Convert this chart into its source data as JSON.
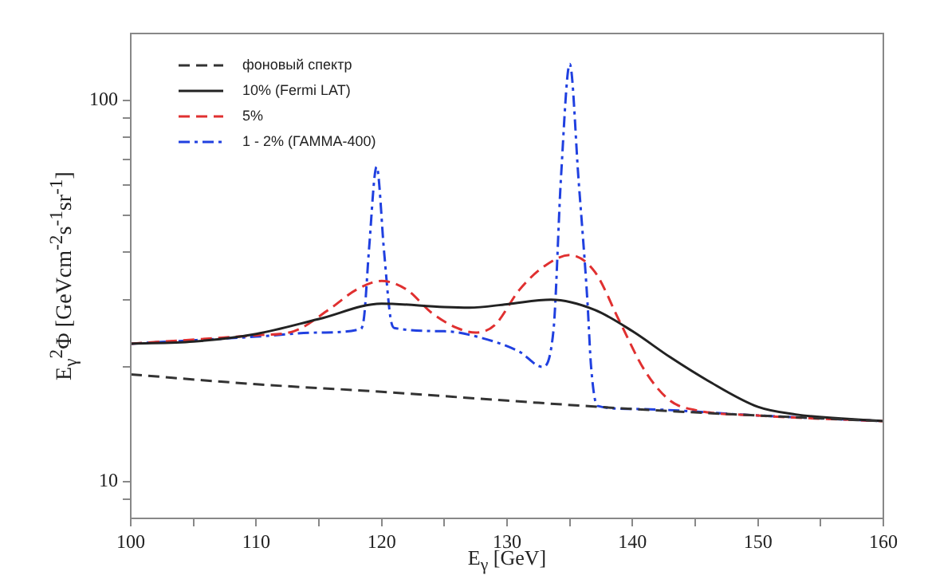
{
  "chart_data": {
    "type": "line",
    "xlabel": "E$_{γ}$ [GeV]",
    "ylabel": "E$_{γ}$$^{2}$Φ [GeVcm$^{-2}$s$^{-1}$sr$^{-1}$]",
    "log": "y",
    "xlim": [
      100,
      160
    ],
    "ylim": [
      8,
      150
    ],
    "xticks": [
      100,
      {
        "value": 105,
        "label": null
      },
      110,
      {
        "value": 115,
        "label": null
      },
      120,
      {
        "value": 125,
        "label": null
      },
      130,
      {
        "value": 135,
        "label": null
      },
      140,
      {
        "value": 145,
        "label": null
      },
      150,
      {
        "value": 155,
        "label": null
      },
      160
    ],
    "yticks": [
      {
        "value": 9,
        "label": null
      },
      10,
      {
        "value": 20,
        "label": null
      },
      {
        "value": 30,
        "label": null
      },
      {
        "value": 40,
        "label": null
      },
      {
        "value": 50,
        "label": null
      },
      {
        "value": 60,
        "label": null
      },
      {
        "value": 70,
        "label": null
      },
      {
        "value": 80,
        "label": null
      },
      {
        "value": 90,
        "label": null
      },
      100
    ],
    "grid": false,
    "legend": "top left",
    "marker": "none",
    "series": [
      {
        "name": "фоновый спектр",
        "color": "#333333",
        "line_style": "dashed",
        "x": [
          100,
          110,
          120,
          130,
          140,
          150,
          160
        ],
        "values": [
          19.1,
          18.0,
          17.2,
          16.3,
          15.5,
          14.9,
          14.4
        ]
      },
      {
        "name": "10% (Fermi LAT)",
        "color": "#222222",
        "line_style": "solid",
        "x": [
          100,
          105,
          110,
          115,
          120,
          125,
          127,
          130,
          133.5,
          137,
          140,
          143,
          146,
          150,
          153,
          160
        ],
        "values": [
          23.0,
          23.3,
          24.4,
          26.7,
          29.3,
          28.7,
          28.6,
          29.2,
          30.0,
          28.2,
          24.8,
          21.2,
          18.4,
          15.7,
          15.0,
          14.4
        ]
      },
      {
        "name": "5%",
        "color": "#e03030",
        "line_style": "dashed",
        "x": [
          100,
          110,
          113,
          116,
          118,
          120,
          122,
          124,
          126,
          127.5,
          129,
          131,
          133,
          135,
          137,
          139,
          141,
          143,
          145,
          150,
          160
        ],
        "values": [
          23.0,
          24.2,
          24.8,
          28.6,
          31.9,
          33.6,
          31.9,
          27.7,
          25.3,
          24.6,
          25.7,
          31.9,
          36.8,
          39.3,
          35.5,
          26.2,
          19.5,
          16.3,
          15.4,
          14.9,
          14.4
        ]
      },
      {
        "name": "1 - 2% (ГАММА-400)",
        "color": "#2040e0",
        "line_style": "dashdot",
        "x": [
          100,
          110,
          115,
          118.3,
          118.6,
          119.0,
          119.6,
          120.2,
          120.7,
          121,
          125,
          128,
          131,
          132.8,
          133.7,
          134.3,
          135,
          135.7,
          136.4,
          136.7,
          137.2,
          140,
          150,
          160
        ],
        "values": [
          23.0,
          24.0,
          24.6,
          25.1,
          27,
          40.9,
          67.0,
          40,
          27,
          25.3,
          24.8,
          23.8,
          21.9,
          20.0,
          24.9,
          62.8,
          124.7,
          62,
          30,
          20,
          15.8,
          15.5,
          14.9,
          14.4
        ]
      }
    ]
  }
}
